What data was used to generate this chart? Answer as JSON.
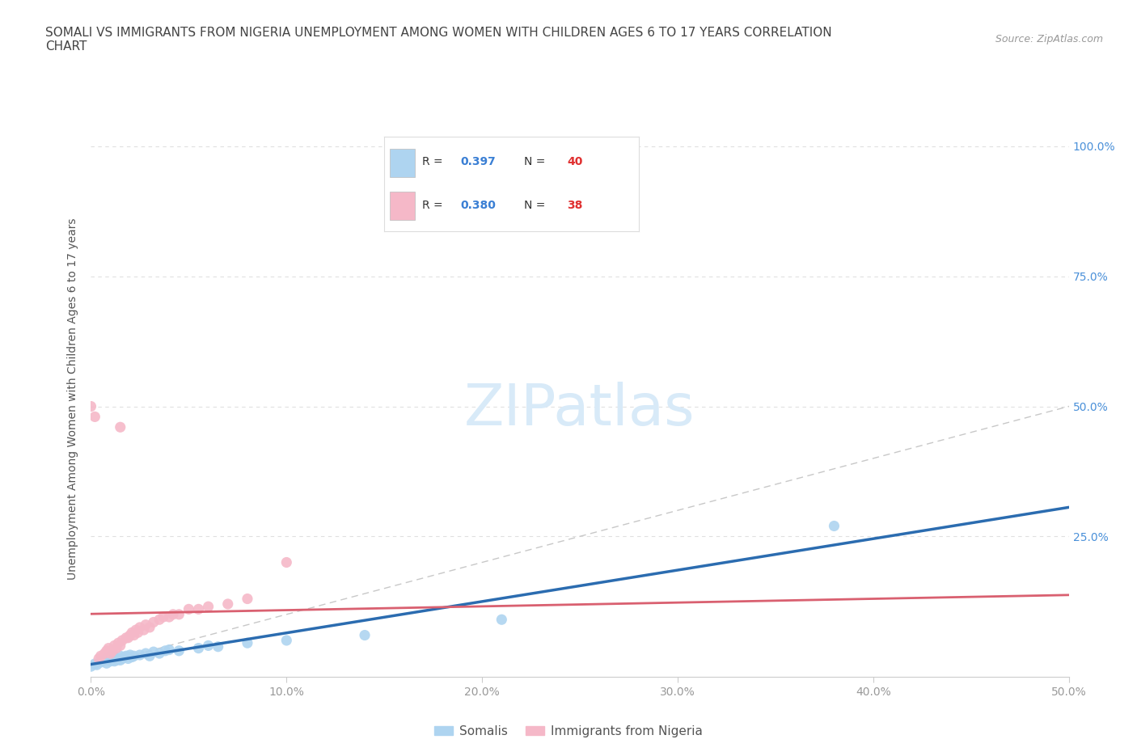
{
  "title": "SOMALI VS IMMIGRANTS FROM NIGERIA UNEMPLOYMENT AMONG WOMEN WITH CHILDREN AGES 6 TO 17 YEARS CORRELATION\nCHART",
  "source": "Source: ZipAtlas.com",
  "ylabel": "Unemployment Among Women with Children Ages 6 to 17 years",
  "xlim": [
    0.0,
    0.5
  ],
  "ylim": [
    -0.02,
    1.05
  ],
  "xtick_labels": [
    "0.0%",
    "10.0%",
    "20.0%",
    "30.0%",
    "40.0%",
    "50.0%"
  ],
  "xtick_values": [
    0.0,
    0.1,
    0.2,
    0.3,
    0.4,
    0.5
  ],
  "ytick_labels": [
    "25.0%",
    "50.0%",
    "75.0%",
    "100.0%"
  ],
  "ytick_values": [
    0.25,
    0.5,
    0.75,
    1.0
  ],
  "R_somali": 0.397,
  "N_somali": 40,
  "R_nigeria": 0.38,
  "N_nigeria": 38,
  "somali_color": "#aed4f0",
  "nigeria_color": "#f5b8c8",
  "somali_line_color": "#2b6cb0",
  "nigeria_line_color": "#d96070",
  "diagonal_color": "#c8c8c8",
  "grid_color": "#e0e0e0",
  "title_color": "#444444",
  "axis_label_color": "#555555",
  "tick_label_color": "#999999",
  "right_tick_color": "#4a90d9",
  "legend_r_color": "#3a7fd4",
  "legend_n_color": "#e03030",
  "watermark_color": "#d8eaf8",
  "background_color": "#ffffff",
  "somali_x": [
    0.0,
    0.002,
    0.003,
    0.005,
    0.005,
    0.007,
    0.008,
    0.008,
    0.01,
    0.01,
    0.01,
    0.012,
    0.012,
    0.013,
    0.014,
    0.015,
    0.015,
    0.016,
    0.017,
    0.018,
    0.019,
    0.02,
    0.021,
    0.022,
    0.025,
    0.028,
    0.03,
    0.032,
    0.035,
    0.038,
    0.04,
    0.045,
    0.055,
    0.06,
    0.065,
    0.08,
    0.1,
    0.14,
    0.21,
    0.38
  ],
  "somali_y": [
    0.0,
    0.005,
    0.003,
    0.01,
    0.008,
    0.012,
    0.006,
    0.015,
    0.01,
    0.012,
    0.02,
    0.01,
    0.018,
    0.012,
    0.014,
    0.012,
    0.02,
    0.015,
    0.018,
    0.02,
    0.015,
    0.022,
    0.018,
    0.02,
    0.022,
    0.025,
    0.02,
    0.028,
    0.025,
    0.03,
    0.032,
    0.03,
    0.035,
    0.04,
    0.038,
    0.045,
    0.05,
    0.06,
    0.09,
    0.27
  ],
  "nigeria_x": [
    0.0,
    0.002,
    0.004,
    0.005,
    0.007,
    0.008,
    0.009,
    0.01,
    0.011,
    0.012,
    0.013,
    0.014,
    0.015,
    0.015,
    0.016,
    0.018,
    0.019,
    0.02,
    0.021,
    0.022,
    0.023,
    0.024,
    0.025,
    0.027,
    0.028,
    0.03,
    0.032,
    0.035,
    0.037,
    0.04,
    0.042,
    0.045,
    0.05,
    0.055,
    0.06,
    0.07,
    0.08,
    0.1
  ],
  "nigeria_y": [
    0.5,
    0.48,
    0.015,
    0.02,
    0.025,
    0.03,
    0.035,
    0.025,
    0.03,
    0.04,
    0.035,
    0.045,
    0.04,
    0.46,
    0.05,
    0.055,
    0.055,
    0.06,
    0.065,
    0.06,
    0.07,
    0.065,
    0.075,
    0.07,
    0.08,
    0.075,
    0.085,
    0.09,
    0.095,
    0.095,
    0.1,
    0.1,
    0.11,
    0.11,
    0.115,
    0.12,
    0.13,
    0.2
  ]
}
